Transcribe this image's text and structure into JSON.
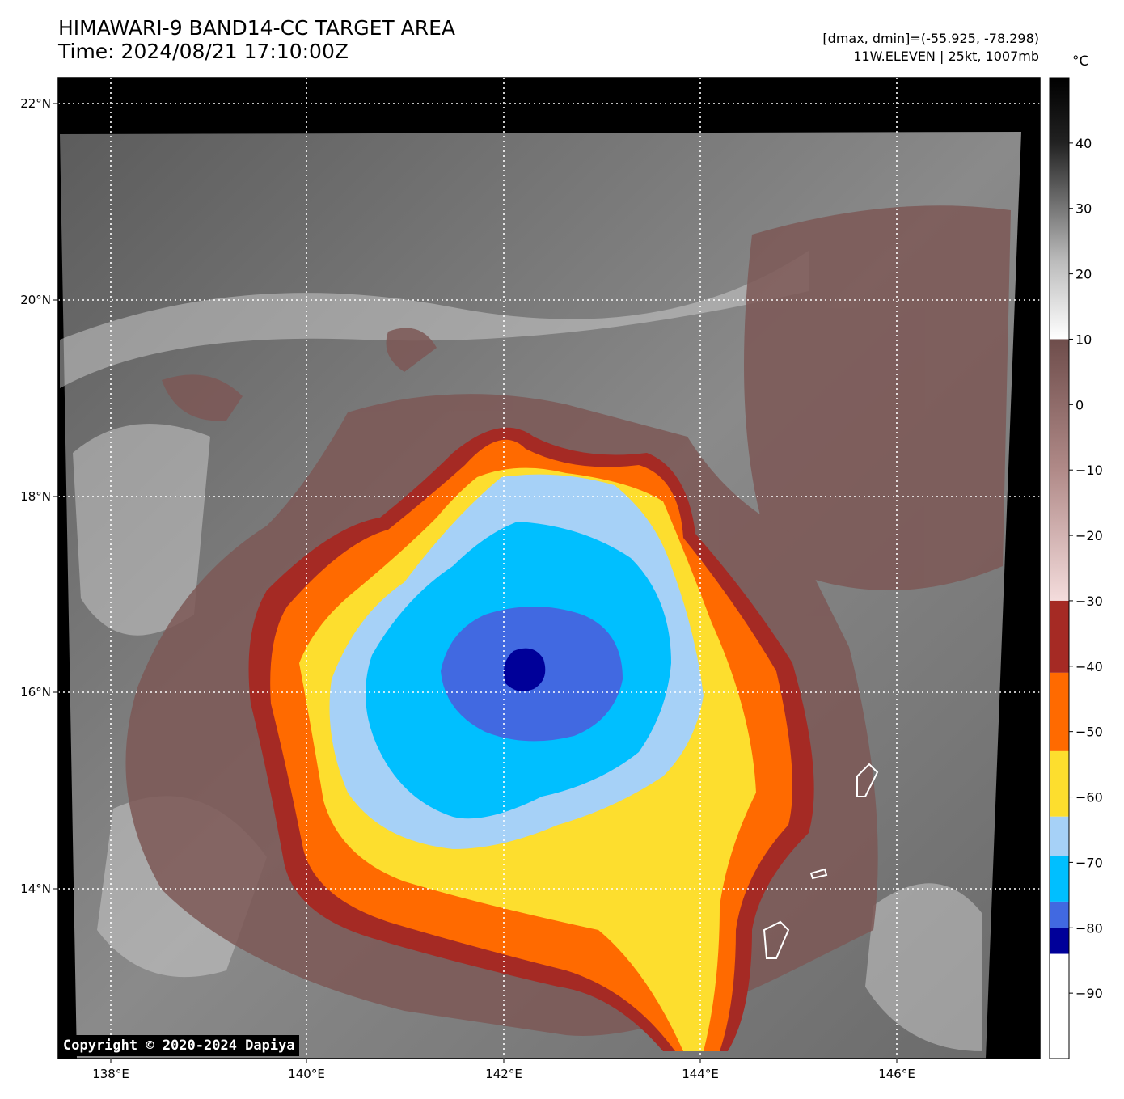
{
  "header": {
    "title_line1": "HIMAWARI-9 BAND14-CC TARGET AREA",
    "title_line2": "Time: 2024/08/21 17:10:00Z",
    "info_line1": "[dmax, dmin]=(-55.925, -78.298)",
    "info_line2": "11W.ELEVEN | 25kt, 1007mb"
  },
  "colorbar": {
    "unit": "°C",
    "tick_labels": [
      "40",
      "30",
      "20",
      "10",
      "0",
      "−10",
      "−20",
      "−30",
      "−40",
      "−50",
      "−60",
      "−70",
      "−80",
      "−90"
    ],
    "segments": [
      {
        "from": 50,
        "to": 10,
        "color": "gradient-black-white"
      },
      {
        "from": 10,
        "to": -30,
        "color": "gradient-brown-pink"
      },
      {
        "from": -30,
        "to": -41,
        "color": "#a52a24"
      },
      {
        "from": -41,
        "to": -53,
        "color": "#ff6a00"
      },
      {
        "from": -53,
        "to": -63,
        "color": "#fdde2e"
      },
      {
        "from": -63,
        "to": -69,
        "color": "#a6d1f7"
      },
      {
        "from": -69,
        "to": -76,
        "color": "#00bfff"
      },
      {
        "from": -76,
        "to": -80,
        "color": "#4169e1"
      },
      {
        "from": -80,
        "to": -84,
        "color": "#000099"
      },
      {
        "from": -84,
        "to": -100,
        "color": "#ffffff"
      }
    ]
  },
  "map": {
    "lon_labels": [
      "138°E",
      "140°E",
      "142°E",
      "144°E",
      "146°E"
    ],
    "lat_labels": [
      "22°N",
      "20°N",
      "18°N",
      "16°N",
      "14°N"
    ],
    "center_lon": 142.2,
    "center_lat": 16.3
  },
  "copyright": "Copyright © 2020-2024 Dapiya"
}
